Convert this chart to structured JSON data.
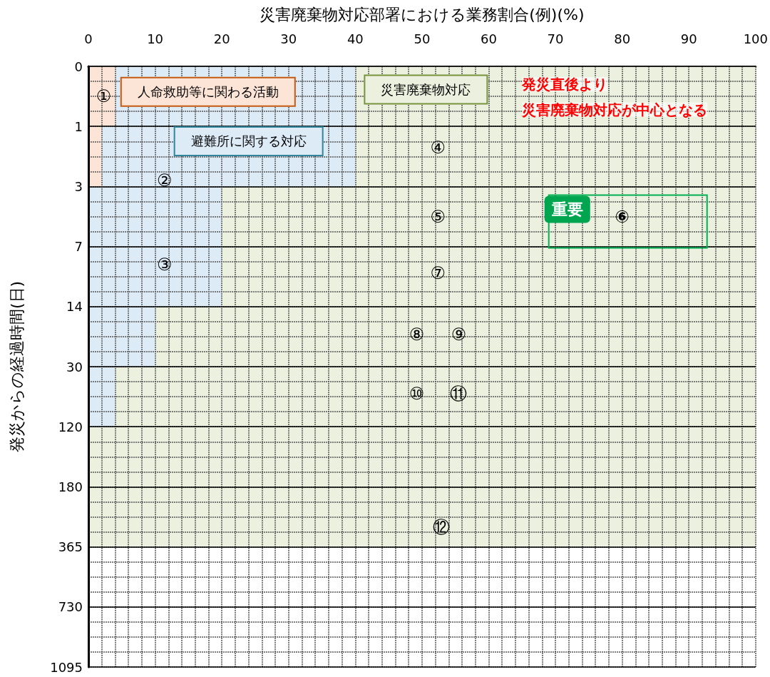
{
  "chart_data": {
    "type": "bar",
    "orientation": "horizontal",
    "stacked": true,
    "xlabel": "災害廃棄物対応部署における業務割合(例)(%)",
    "ylabel": "発災からの経過時間(日)",
    "categories": [
      "0",
      "1",
      "3",
      "7",
      "14",
      "30",
      "120",
      "180",
      "365",
      "730",
      "1095"
    ],
    "series": [
      {
        "name": "人命救助等に関わる活動",
        "color": "#fce4d6",
        "values": [
          4,
          2,
          0,
          0,
          0,
          0,
          0,
          0,
          null,
          null,
          null
        ]
      },
      {
        "name": "避難所に関する対応",
        "color": "#ddebf7",
        "values": [
          36,
          38,
          20,
          20,
          10,
          4,
          0,
          0,
          null,
          null,
          null
        ]
      },
      {
        "name": "災害廃棄物対応",
        "color": "#ebf1de",
        "values": [
          60,
          60,
          80,
          80,
          90,
          96,
          100,
          100,
          null,
          null,
          null
        ]
      }
    ],
    "xlim": [
      0,
      100
    ],
    "xticks": [
      0,
      10,
      20,
      30,
      40,
      50,
      60,
      70,
      80,
      90,
      100
    ],
    "grid": true,
    "legend": false,
    "annotations": [
      "①",
      "②",
      "③",
      "④",
      "⑤",
      "⑥",
      "⑦",
      "⑧",
      "⑨",
      "⑩",
      "⑪",
      "⑫",
      "発災直後より",
      "災害廃棄物対応が中心となる",
      "重要"
    ]
  }
}
